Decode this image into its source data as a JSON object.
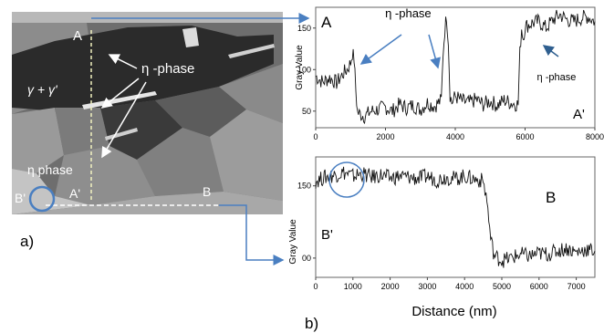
{
  "panel_a": {
    "label": "a)",
    "marker_A": "A",
    "marker_A_prime": "A'",
    "marker_B": "B",
    "marker_B_prime": "B'",
    "region_label": "γ + γ'",
    "eta_label": "η -phase",
    "eta_phase_label": "η phase"
  },
  "panel_b": {
    "label": "b)",
    "x_axis_label": "Distance (nm)"
  },
  "chart_data": [
    {
      "type": "line",
      "title": "",
      "xlabel": "",
      "ylabel": "Gray Value",
      "xlim": [
        0,
        8000
      ],
      "ylim": [
        30,
        175
      ],
      "xticks": [
        0,
        2000,
        4000,
        6000,
        8000
      ],
      "xtick_labels": [
        "0",
        "2000",
        "4000",
        "6000",
        "8000"
      ],
      "yticks": [
        50,
        100,
        150
      ],
      "ytick_labels": [
        "50",
        "100",
        "150"
      ],
      "corner_label_left": "A",
      "corner_label_right": "A'",
      "annotations": [
        {
          "text": "η -phase",
          "x": 2650,
          "y": 163
        },
        {
          "text": "η -phase",
          "x": 6900,
          "y": 87
        }
      ],
      "series": [
        {
          "x": [
            0,
            200,
            400,
            600,
            800,
            900,
            1000,
            1050,
            1100,
            1150,
            1200,
            1400,
            1600,
            1800,
            2000,
            2200,
            2400,
            2600,
            2800,
            3000,
            3200,
            3400,
            3600,
            3650,
            3700,
            3750,
            3800,
            3850,
            3900,
            4000,
            4200,
            4400,
            4600,
            4800,
            5000,
            5200,
            5400,
            5600,
            5800,
            5850,
            5900,
            5950,
            6000,
            6200,
            6400,
            6600,
            6800,
            7000,
            7200,
            7400,
            7600,
            7800,
            8000
          ],
          "y": [
            92,
            85,
            90,
            84,
            96,
            100,
            108,
            120,
            113,
            75,
            48,
            44,
            50,
            52,
            55,
            50,
            58,
            54,
            57,
            52,
            60,
            56,
            63,
            120,
            148,
            165,
            135,
            70,
            60,
            68,
            62,
            60,
            64,
            58,
            62,
            57,
            63,
            60,
            58,
            120,
            150,
            138,
            152,
            156,
            158,
            150,
            160,
            166,
            160,
            158,
            162,
            164,
            158
          ]
        }
      ]
    },
    {
      "type": "line",
      "title": "",
      "xlabel": "Distance (nm)",
      "ylabel": "Gray Value",
      "xlim": [
        0,
        7500
      ],
      "ylim": [
        -40,
        210
      ],
      "xticks": [
        0,
        1000,
        2000,
        3000,
        4000,
        5000,
        6000,
        7000
      ],
      "xtick_labels": [
        "0",
        "1000",
        "2000",
        "3000",
        "4000",
        "5000",
        "6000",
        "7000"
      ],
      "yticks": [
        0,
        150
      ],
      "ytick_labels": [
        "00",
        "150"
      ],
      "corner_label_left": "B'",
      "corner_label_right": "B",
      "series": [
        {
          "x": [
            0,
            250,
            500,
            750,
            1000,
            1250,
            1500,
            1750,
            2000,
            2250,
            2500,
            2750,
            3000,
            3250,
            3500,
            3750,
            4000,
            4250,
            4500,
            4600,
            4700,
            4800,
            5000,
            5250,
            5500,
            5750,
            6000,
            6250,
            6500,
            6750,
            7000,
            7250,
            7500
          ],
          "y": [
            160,
            168,
            172,
            178,
            170,
            175,
            168,
            172,
            166,
            170,
            168,
            165,
            170,
            162,
            168,
            165,
            170,
            164,
            160,
            120,
            40,
            5,
            -5,
            0,
            8,
            4,
            10,
            8,
            15,
            20,
            12,
            18,
            15
          ]
        }
      ]
    }
  ]
}
